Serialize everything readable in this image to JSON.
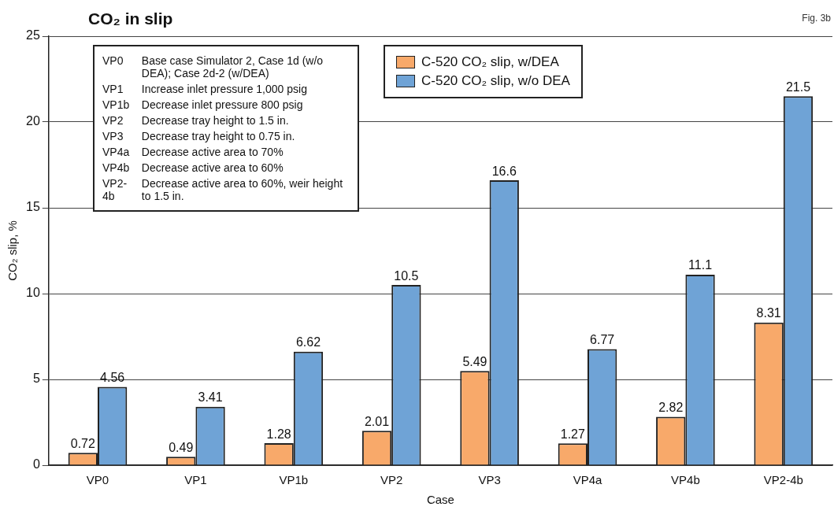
{
  "chart_data": {
    "type": "bar",
    "title": "CO₂ in slip",
    "xlabel": "Case",
    "ylabel": "CO₂ slip, %",
    "categories": [
      "VP0",
      "VP1",
      "VP1b",
      "VP2",
      "VP3",
      "VP4a",
      "VP4b",
      "VP2-4b"
    ],
    "series": [
      {
        "name": "C-520 CO₂ slip, w/DEA",
        "color": "#f8a96a",
        "values": [
          0.72,
          0.49,
          1.28,
          2.01,
          5.49,
          1.27,
          2.82,
          8.31
        ]
      },
      {
        "name": "C-520 CO₂ slip, w/o DEA",
        "color": "#6fa3d6",
        "values": [
          4.56,
          3.41,
          6.62,
          10.5,
          16.6,
          6.77,
          11.1,
          21.5
        ]
      }
    ],
    "ylim": [
      0,
      25
    ],
    "yticks": [
      0,
      5,
      10,
      15,
      20,
      25
    ],
    "grid": "y",
    "legend": "top",
    "data_labels": true,
    "annotations": [
      "Fig. 3b",
      "VP0 Base case Simulator 2, Case 1d (w/o DEA); Case 2d-2 (w/DEA)",
      "VP1 Increase inlet pressure 1,000 psig",
      "VP1b Decrease inlet pressure 800 psig",
      "VP2 Decrease tray height to 1.5 in.",
      "VP3 Decrease tray height to 0.75 in.",
      "VP4a Decrease active area to 70%",
      "VP4b Decrease active area to 60%",
      "VP2-4b Decrease active area to 60%, weir height to 1.5 in."
    ]
  }
}
